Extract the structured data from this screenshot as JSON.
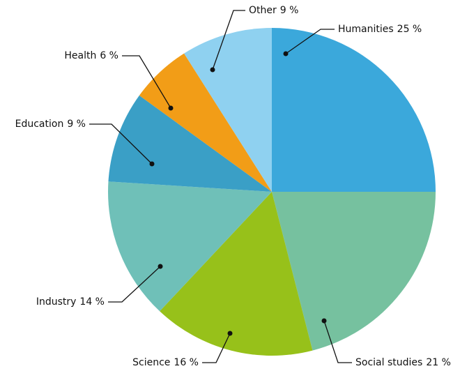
{
  "chart_data": {
    "type": "pie",
    "categories": [
      "Humanities",
      "Social studies",
      "Science",
      "Industry",
      "Education",
      "Health",
      "Other"
    ],
    "values": [
      25,
      21,
      16,
      14,
      9,
      6,
      9
    ],
    "value_labels": [
      "25 %",
      "21 %",
      "16 %",
      "14 %",
      "9 %",
      "6 %",
      "9 %"
    ],
    "colors": [
      "#3ba8db",
      "#76c19f",
      "#97c11a",
      "#6fc0b8",
      "#3a9fc6",
      "#f29d17",
      "#8fd1f0"
    ]
  }
}
